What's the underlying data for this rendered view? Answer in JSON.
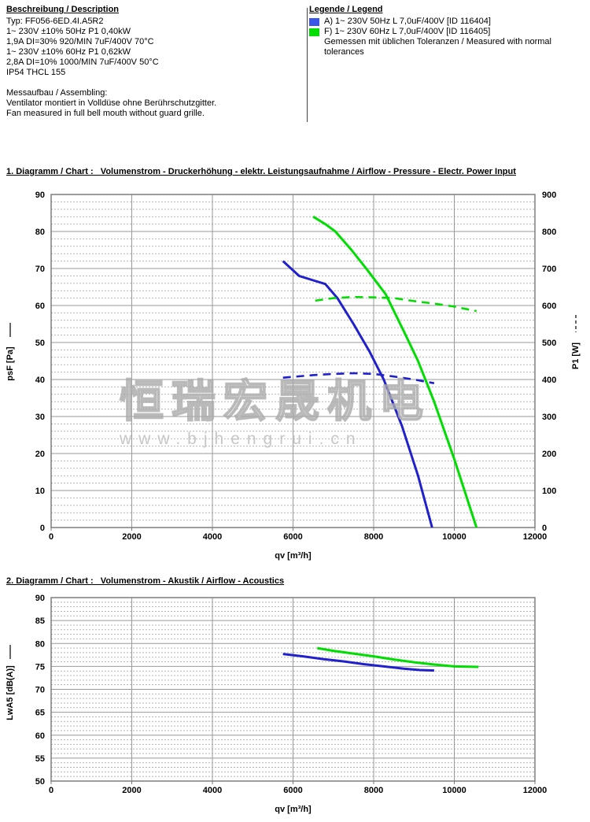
{
  "description": {
    "title": "Beschreibung / Description",
    "lines": [
      "Typ: FF056-6ED.4I.A5R2",
      "1~ 230V ±10% 50Hz P1 0,40kW",
      "1,9A DI=30% 920/MIN 7uF/400V 70°C",
      "1~ 230V ±10% 60Hz P1 0,62kW",
      "2,8A DI=10% 1000/MIN 7uF/400V 50°C",
      "IP54 THCL 155"
    ],
    "assembling": {
      "title": "Messaufbau / Assembling:",
      "lines": [
        "Ventilator montiert in Volldüse ohne Berührschutzgitter.",
        "Fan measured in full bell mouth without guard grille."
      ]
    }
  },
  "legend": {
    "title": "Legende / Legend",
    "items": [
      {
        "id": "A",
        "color": "#3a57e8",
        "label": "A) 1~ 230V 50Hz L 7,0uF/400V [ID 116404]"
      },
      {
        "id": "F",
        "color": "#00dd00",
        "label": "F) 1~ 230V 60Hz L 7,0uF/400V [ID 116405]"
      }
    ],
    "note": "Gemessen mit üblichen Toleranzen / Measured with normal tolerances"
  },
  "watermark": {
    "text": "恒瑞宏晟机电",
    "subtext": "www.bjhengrui.cn"
  },
  "chart_data": [
    {
      "type": "line",
      "title": "1. Diagramm / Chart :   Volumenstrom - Druckerhöhung - elektr. Leistungsaufnahme / Airflow - Pressure - Electr. Power Input",
      "xlabel": "qv [m³/h]",
      "ylabel_left": "psF [Pa]",
      "ylabel_right": "P1 [W]",
      "xlim": [
        0,
        12000
      ],
      "xtick_step": 2000,
      "ylim_left": [
        0,
        90
      ],
      "ytick_major": 10,
      "ytick_minor": 2,
      "ylim_right": [
        0,
        900
      ],
      "grid": true,
      "legend_position": "none",
      "series": [
        {
          "name": "psF A) 1~230V 50Hz",
          "color": "#2020cc",
          "style": "solid",
          "axis": "left",
          "points": [
            [
              5750,
              72
            ],
            [
              6150,
              68
            ],
            [
              6500,
              66.8
            ],
            [
              6800,
              65.8
            ],
            [
              7100,
              62
            ],
            [
              7500,
              55
            ],
            [
              7900,
              47.5
            ],
            [
              8250,
              40
            ],
            [
              8700,
              27.5
            ],
            [
              9100,
              14
            ],
            [
              9450,
              0
            ]
          ]
        },
        {
          "name": "psF F) 1~230V 60Hz",
          "color": "#00dd00",
          "style": "solid",
          "axis": "left",
          "points": [
            [
              6500,
              84
            ],
            [
              6800,
              82
            ],
            [
              7050,
              80
            ],
            [
              7450,
              75
            ],
            [
              7850,
              69.5
            ],
            [
              8300,
              63
            ],
            [
              8750,
              53
            ],
            [
              9100,
              45
            ],
            [
              9500,
              34
            ],
            [
              10000,
              18.5
            ],
            [
              10550,
              0
            ]
          ]
        },
        {
          "name": "P1 A) 1~230V 50Hz",
          "color": "#2020cc",
          "style": "dashed",
          "axis": "right",
          "points": [
            [
              5750,
              405
            ],
            [
              6500,
              412
            ],
            [
              7000,
              415
            ],
            [
              7500,
              417
            ],
            [
              8000,
              415
            ],
            [
              8500,
              408
            ],
            [
              9000,
              400
            ],
            [
              9500,
              390
            ]
          ]
        },
        {
          "name": "P1 F) 1~230V 60Hz",
          "color": "#00dd00",
          "style": "dashed",
          "axis": "right",
          "points": [
            [
              6550,
              613
            ],
            [
              7000,
              620
            ],
            [
              7500,
              623
            ],
            [
              8000,
              622
            ],
            [
              8500,
              620
            ],
            [
              9000,
              612
            ],
            [
              9500,
              605
            ],
            [
              10000,
              597
            ],
            [
              10550,
              585
            ]
          ]
        }
      ]
    },
    {
      "type": "line",
      "title": "2. Diagramm / Chart :   Volumenstrom - Akustik / Airflow - Acoustics",
      "xlabel": "qv [m³/h]",
      "ylabel_left": "LwA5 [dB(A)]",
      "xlim": [
        0,
        12000
      ],
      "xtick_step": 2000,
      "ylim_left": [
        50,
        90
      ],
      "ytick_major": 5,
      "ytick_minor": 1,
      "grid": true,
      "legend_position": "none",
      "series": [
        {
          "name": "LwA5 A) 1~230V 50Hz",
          "color": "#2020cc",
          "style": "solid",
          "axis": "left",
          "points": [
            [
              5750,
              77.7
            ],
            [
              6250,
              77.2
            ],
            [
              6750,
              76.6
            ],
            [
              7250,
              76.1
            ],
            [
              7750,
              75.5
            ],
            [
              8250,
              75
            ],
            [
              8750,
              74.5
            ],
            [
              9150,
              74.2
            ],
            [
              9500,
              74.1
            ]
          ]
        },
        {
          "name": "LwA5 F) 1~230V 60Hz",
          "color": "#00dd00",
          "style": "solid",
          "axis": "left",
          "points": [
            [
              6600,
              79
            ],
            [
              7000,
              78.4
            ],
            [
              7500,
              77.8
            ],
            [
              8000,
              77.2
            ],
            [
              8500,
              76.5
            ],
            [
              9000,
              75.9
            ],
            [
              9500,
              75.4
            ],
            [
              10000,
              75
            ],
            [
              10600,
              74.9
            ]
          ]
        }
      ]
    }
  ]
}
